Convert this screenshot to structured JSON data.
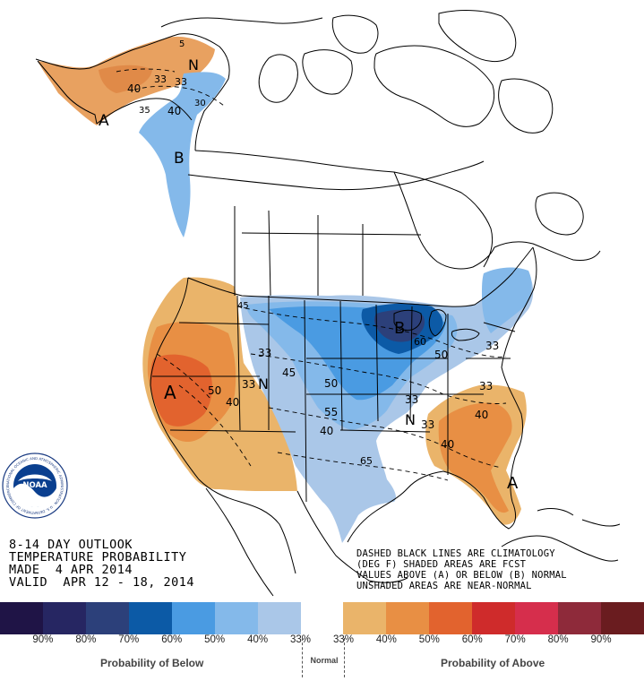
{
  "outlook": {
    "line1": "8-14 DAY OUTLOOK",
    "line2": "TEMPERATURE PROBABILITY",
    "line3": "MADE  4 APR 2014",
    "line4": "VALID  APR 12 - 18, 2014"
  },
  "notes": {
    "line1": "DASHED BLACK LINES ARE CLIMATOLOGY",
    "line2": "(DEG F) SHADED AREAS ARE FCST",
    "line3": "VALUES ABOVE (A) OR BELOW (B) NORMAL",
    "line4": "UNSHADED AREAS ARE NEAR-NORMAL"
  },
  "logo": {
    "text": "NOAA",
    "ring_text": "NATIONAL OCEANIC AND ATMOSPHERIC ADMINISTRATION · U.S. DEPARTMENT OF COMMERCE"
  },
  "map_labels": {
    "a_west": "A",
    "a_alaska": "A",
    "a_florida": "A",
    "b_greatlakes": "B",
    "b_alaska": "B",
    "n_alaska": "N",
    "n_west": "N",
    "n_south": "N",
    "c50": "50",
    "c40": "40",
    "c33": "33",
    "c45": "45",
    "c55": "55",
    "c65": "65",
    "c5": "5",
    "c30": "30",
    "c35": "35",
    "c60": "60"
  },
  "legend": {
    "colors": [
      "#1f1446",
      "#262662",
      "#2c407a",
      "#0c5aa6",
      "#4a9be2",
      "#84b9ea",
      "#aac7e8",
      "#ffffff",
      "#eab46a",
      "#e88f44",
      "#e2632e",
      "#cf2b2b",
      "#d62e4c",
      "#8e2a3a",
      "#6a1c1f"
    ],
    "labels": [
      "90%",
      "80%",
      "70%",
      "60%",
      "50%",
      "40%",
      "33%",
      "33%",
      "40%",
      "50%",
      "60%",
      "70%",
      "80%",
      "90%"
    ],
    "below_caption": "Probability of Below",
    "normal_caption": "Normal",
    "above_caption": "Probability of Above"
  }
}
